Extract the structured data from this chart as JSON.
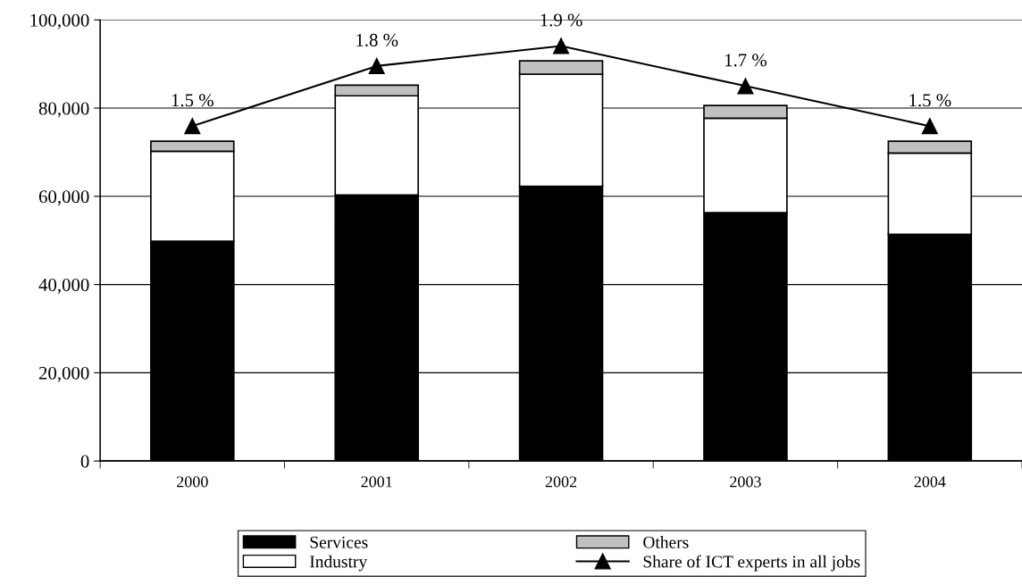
{
  "chart_data": {
    "type": "bar",
    "stacked": true,
    "categories": [
      "2000",
      "2001",
      "2002",
      "2003",
      "2004"
    ],
    "series": [
      {
        "name": "Services",
        "color": "#000000",
        "values": [
          49800,
          60300,
          62300,
          56300,
          51400
        ]
      },
      {
        "name": "Industry",
        "color": "#ffffff",
        "values": [
          20400,
          22500,
          25400,
          21400,
          18400
        ]
      },
      {
        "name": "Others",
        "color": "#c0c0c0",
        "values": [
          2300,
          2400,
          3000,
          2900,
          2700
        ]
      },
      {
        "name": "Share of ICT experts in all jobs",
        "type": "line",
        "axis": "y2",
        "color": "#000000",
        "marker": "triangle",
        "values": [
          1.5,
          1.8,
          1.9,
          1.7,
          1.5
        ],
        "value_labels": [
          "1.5 %",
          "1.8 %",
          "1.9 %",
          "1.7 %",
          "1.5 %"
        ]
      }
    ],
    "ylim": [
      0,
      100000
    ],
    "yticks": [
      {
        "value": 0,
        "label": "0"
      },
      {
        "value": 20000,
        "label": "20,000"
      },
      {
        "value": 40000,
        "label": "40,000"
      },
      {
        "value": 60000,
        "label": "60,000"
      },
      {
        "value": 80000,
        "label": "80,000"
      },
      {
        "value": 100000,
        "label": "100,000"
      }
    ],
    "y2lim": [
      -0.17,
      2.03
    ],
    "grid": "y",
    "legend": "bottom",
    "tick_labels": "xy"
  }
}
